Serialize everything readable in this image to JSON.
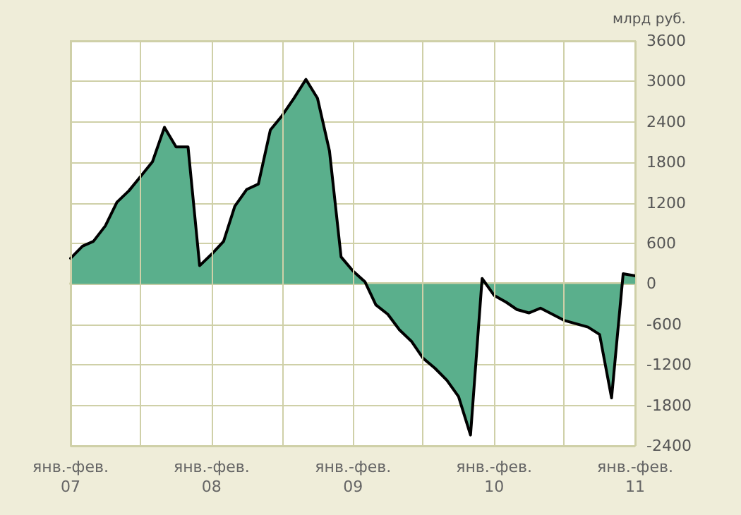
{
  "chart_data": {
    "type": "area",
    "ylabel": "млрд руб.",
    "x": [
      "2007-01",
      "2007-02",
      "2007-03",
      "2007-04",
      "2007-05",
      "2007-06",
      "2007-07",
      "2007-08",
      "2007-09",
      "2007-10",
      "2007-11",
      "2007-12",
      "2008-01",
      "2008-02",
      "2008-03",
      "2008-04",
      "2008-05",
      "2008-06",
      "2008-07",
      "2008-08",
      "2008-09",
      "2008-10",
      "2008-11",
      "2008-12",
      "2009-01",
      "2009-02",
      "2009-03",
      "2009-04",
      "2009-05",
      "2009-06",
      "2009-07",
      "2009-08",
      "2009-09",
      "2009-10",
      "2009-11",
      "2009-12",
      "2010-01",
      "2010-02",
      "2010-03",
      "2010-04",
      "2010-05",
      "2010-06",
      "2010-07",
      "2010-08",
      "2010-09",
      "2010-10",
      "2010-11",
      "2010-12",
      "2011-01"
    ],
    "series": [
      {
        "color": "#5aaf8c",
        "values": [
          380,
          560,
          630,
          860,
          1210,
          1380,
          1590,
          1810,
          2320,
          2030,
          2030,
          270,
          440,
          630,
          1150,
          1400,
          1480,
          2280,
          2490,
          2750,
          3030,
          2750,
          1970,
          400,
          190,
          30,
          -310,
          -450,
          -680,
          -850,
          -1100,
          -1250,
          -1430,
          -1670,
          -2240,
          80,
          -170,
          -270,
          -380,
          -430,
          -360,
          -450,
          -540,
          -590,
          -640,
          -750,
          -1690,
          150,
          120
        ]
      }
    ],
    "xlim": [
      "2007-01",
      "2011-01"
    ],
    "xticks": [
      {
        "value": "2007-01",
        "label": "янв.-фев.\n07"
      },
      {
        "value": "2007-07",
        "label": null
      },
      {
        "value": "2008-01",
        "label": "янв.-фев.\n08"
      },
      {
        "value": "2008-07",
        "label": null
      },
      {
        "value": "2009-01",
        "label": "янв.-фев.\n09"
      },
      {
        "value": "2009-07",
        "label": null
      },
      {
        "value": "2010-01",
        "label": "янв.-фев.\n10"
      },
      {
        "value": "2010-07",
        "label": null
      },
      {
        "value": "2011-01",
        "label": "янв.-фев.\n11"
      }
    ],
    "ylim": [
      -2400,
      3600
    ],
    "yticks": [
      -2400,
      -1800,
      -1200,
      -600,
      0,
      600,
      1200,
      1800,
      2400,
      3000,
      3600
    ],
    "grid": true,
    "marker": "none",
    "line_style": "solid"
  }
}
